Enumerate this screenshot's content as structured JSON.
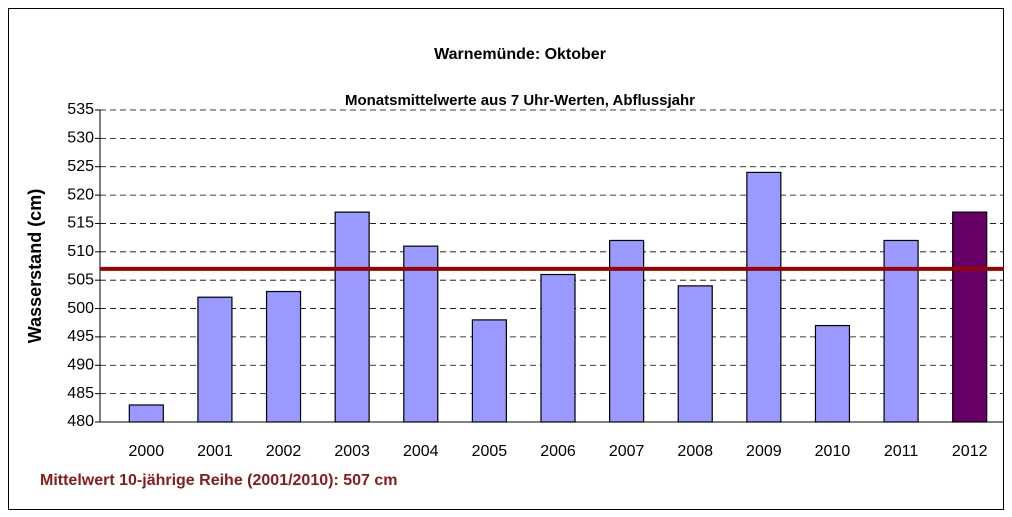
{
  "chart_data": {
    "type": "bar",
    "title": "Warnemünde: Oktober",
    "subtitle": "Monatsmittelwerte aus 7 Uhr-Werten, Abflussjahr",
    "y_label": "Wasserstand (cm)",
    "annotation": "Mittelwert 10-jährige Reihe (2001/2010): 507 cm",
    "categories": [
      "2000",
      "2001",
      "2002",
      "2003",
      "2004",
      "2005",
      "2006",
      "2007",
      "2008",
      "2009",
      "2010",
      "2011",
      "2012"
    ],
    "values": [
      483,
      502,
      503,
      517,
      511,
      498,
      506,
      512,
      504,
      524,
      497,
      512,
      517
    ],
    "colors": [
      "#9999ff",
      "#9999ff",
      "#9999ff",
      "#9999ff",
      "#9999ff",
      "#9999ff",
      "#9999ff",
      "#9999ff",
      "#9999ff",
      "#9999ff",
      "#9999ff",
      "#9999ff",
      "#660066"
    ],
    "reference_line": {
      "value": 507,
      "color": "#990000"
    },
    "ylim": [
      480,
      535
    ],
    "yticks": [
      480,
      485,
      490,
      495,
      500,
      505,
      510,
      515,
      520,
      525,
      530,
      535
    ],
    "grid": true
  }
}
